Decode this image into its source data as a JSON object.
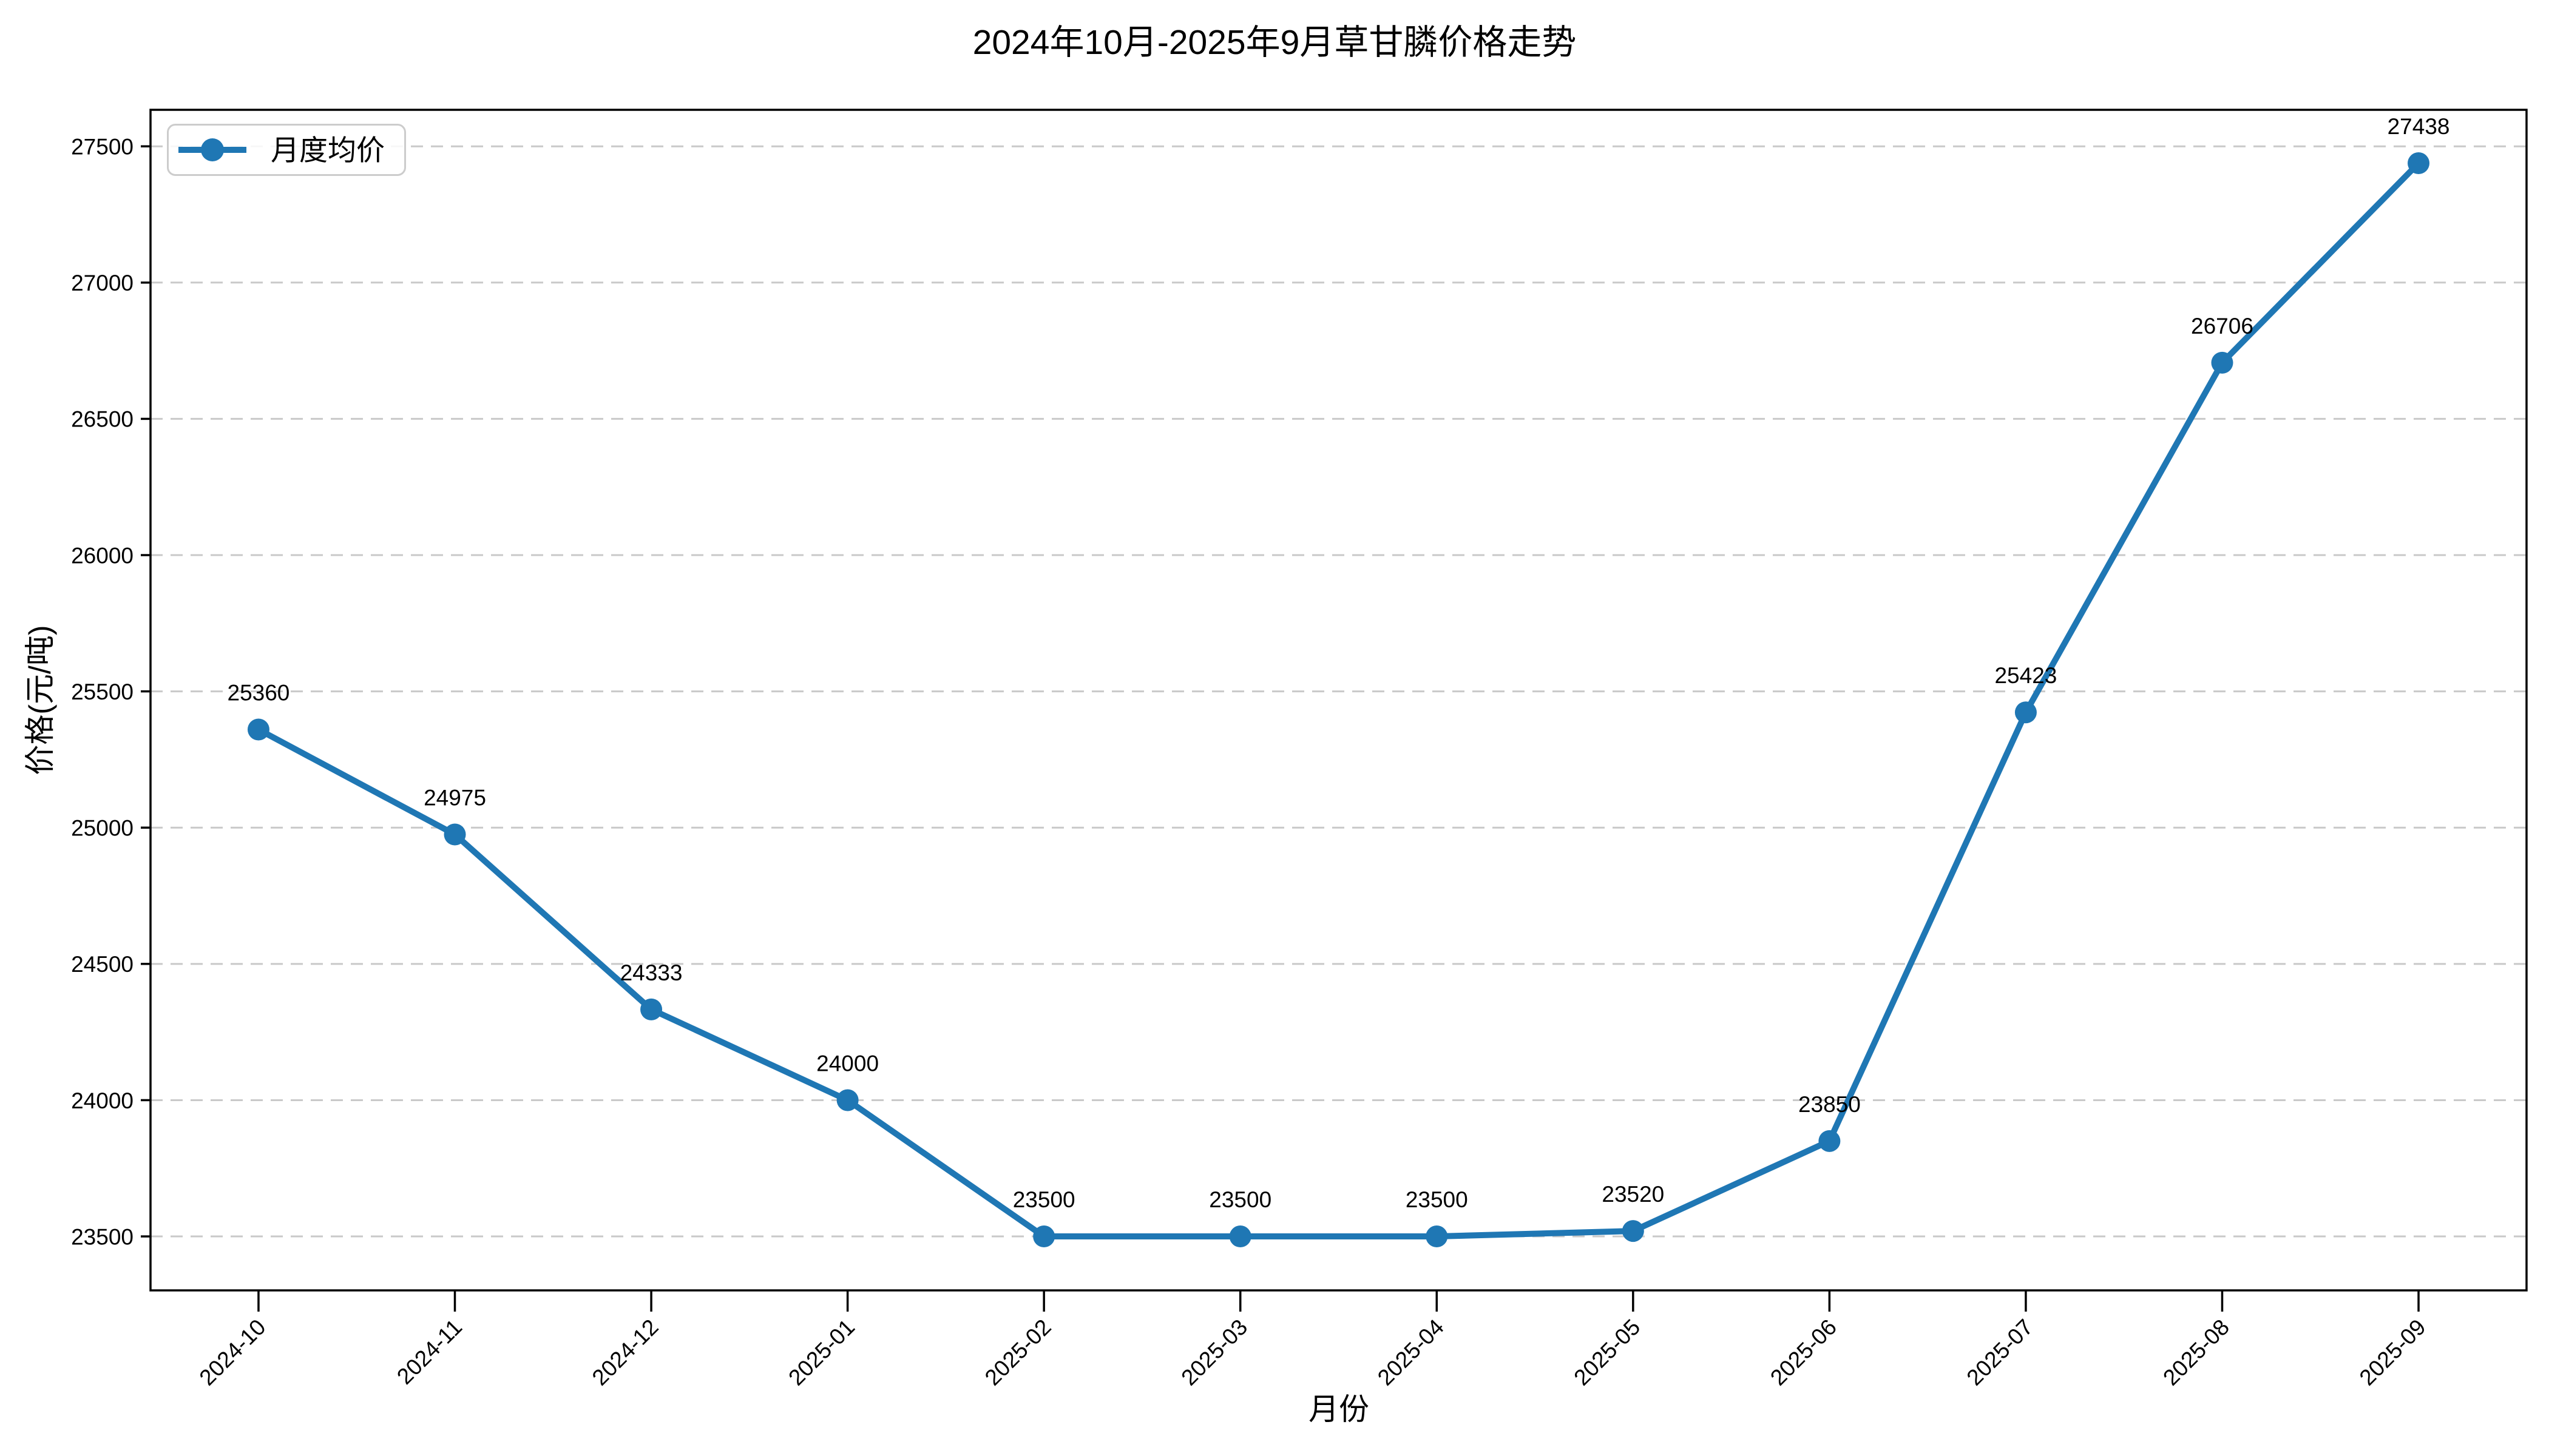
{
  "chart_data": {
    "type": "line",
    "title": "2024年10月-2025年9月草甘膦价格走势",
    "xlabel": "月份",
    "ylabel": "价格(元/吨)",
    "legend": {
      "label": "月度均价",
      "position": "upper left"
    },
    "categories": [
      "2024-10",
      "2024-11",
      "2024-12",
      "2025-01",
      "2025-02",
      "2025-03",
      "2025-04",
      "2025-05",
      "2025-06",
      "2025-07",
      "2025-08",
      "2025-09"
    ],
    "series": [
      {
        "name": "月度均价",
        "values": [
          25360,
          24975,
          24333,
          24000,
          23500,
          23500,
          23500,
          23520,
          23850,
          25423,
          26706,
          27438
        ]
      }
    ],
    "show_point_labels": true,
    "yticks": [
      23500,
      24000,
      24500,
      25000,
      25500,
      26000,
      26500,
      27000,
      27500
    ],
    "ylim": [
      23302,
      27634
    ],
    "grid": "horizontal-dashed",
    "colors": {
      "line": "#1f77b4",
      "marker": "#1f77b4",
      "grid": "#c9c9c9",
      "spine": "#000000",
      "text": "#000000",
      "background": "#ffffff",
      "legend_border": "#cccccc"
    }
  }
}
